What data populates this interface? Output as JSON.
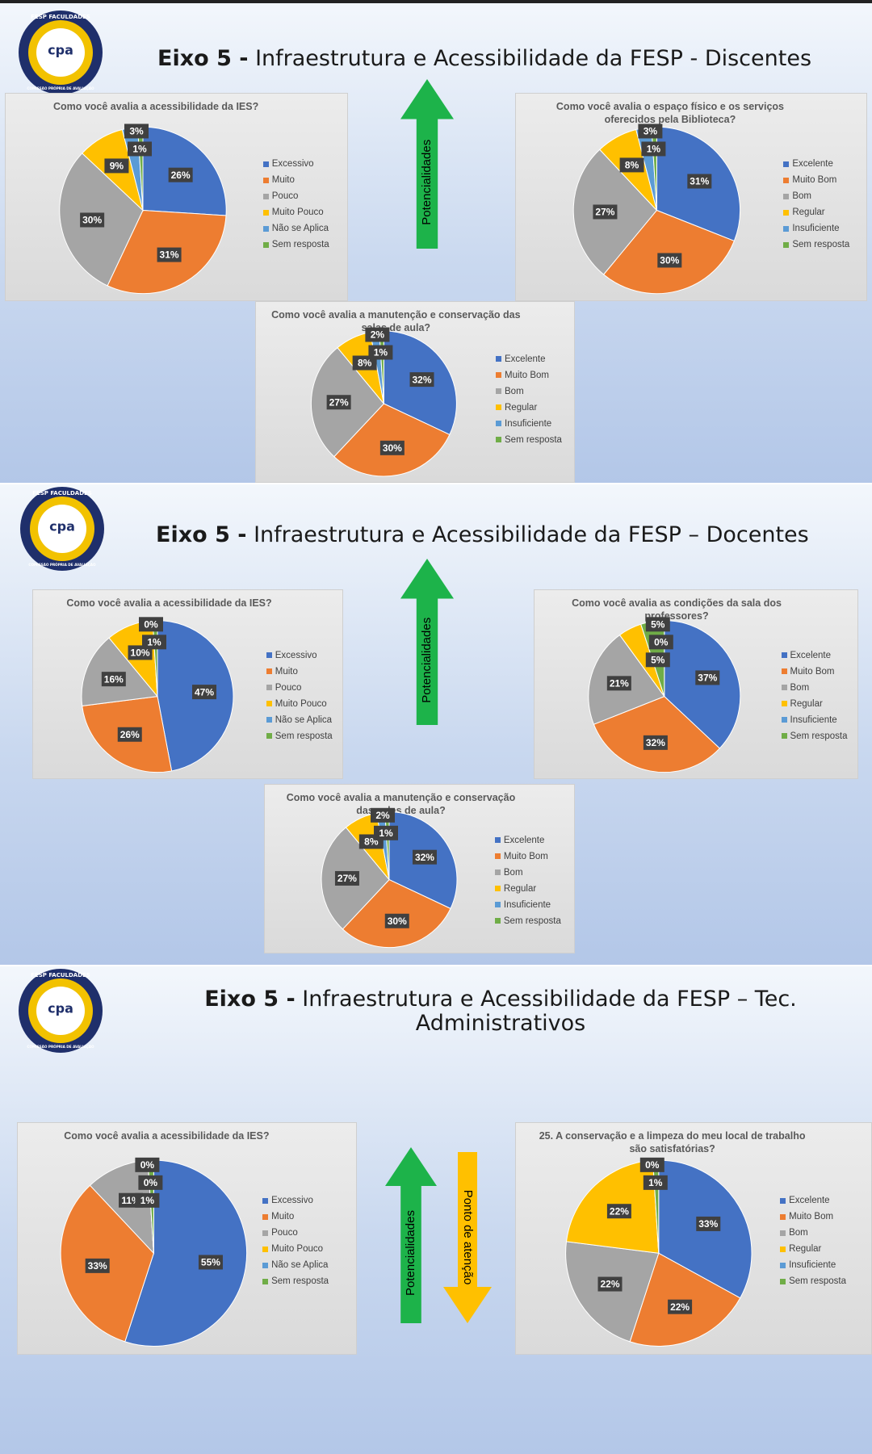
{
  "logo": {
    "name": "FESP FACULDADES",
    "acronym": "cpa",
    "subtitle": "COMISSÃO PRÓPRIA DE AVALIAÇÃO"
  },
  "slides": [
    {
      "title_bold": "Eixo 5 -",
      "title": "Infraestrutura e Acessibilidade da FESP - Discentes",
      "arrows": [
        "Potencialidades"
      ]
    },
    {
      "title_bold": "Eixo 5 -",
      "title": "Infraestrutura e Acessibilidade da FESP – Docentes",
      "arrows": [
        "Potencialidades"
      ]
    },
    {
      "title_bold": "Eixo 5 -",
      "title": "Infraestrutura e Acessibilidade da FESP – Tec. Administrativos",
      "arrows": [
        "Potencialidades",
        "Ponto de atenção"
      ]
    }
  ],
  "chart_data": [
    {
      "type": "pie",
      "title": "Como você avalia a acessibilidade da IES?",
      "categories": [
        "Excessivo",
        "Muito",
        "Pouco",
        "Muito Pouco",
        "Não se Aplica",
        "Sem resposta"
      ],
      "values": [
        26,
        31,
        30,
        9,
        3,
        1
      ],
      "value_labels": [
        "26%",
        "31%",
        "30%",
        "9%",
        "3%",
        "1%"
      ],
      "colors": [
        "#4472c4",
        "#ed7d31",
        "#a5a5a5",
        "#ffc000",
        "#5b9bd5",
        "#70ad47"
      ],
      "legend": "right"
    },
    {
      "type": "pie",
      "title": "Como você avalia o espaço físico e os serviços oferecidos pela Biblioteca?",
      "categories": [
        "Excelente",
        "Muito Bom",
        "Bom",
        "Regular",
        "Insuficiente",
        "Sem resposta"
      ],
      "values": [
        31,
        30,
        27,
        8,
        3,
        1
      ],
      "value_labels": [
        "31%",
        "30%",
        "27%",
        "8%",
        "3%",
        "1%"
      ],
      "colors": [
        "#4472c4",
        "#ed7d31",
        "#a5a5a5",
        "#ffc000",
        "#5b9bd5",
        "#70ad47"
      ],
      "legend": "right"
    },
    {
      "type": "pie",
      "title": "Como você avalia a manutenção e conservação das salas de aula?",
      "categories": [
        "Excelente",
        "Muito Bom",
        "Bom",
        "Regular",
        "Insuficiente",
        "Sem resposta"
      ],
      "values": [
        32,
        30,
        27,
        8,
        2,
        1
      ],
      "value_labels": [
        "32%",
        "30%",
        "27%",
        "8%",
        "2%",
        "1%"
      ],
      "colors": [
        "#4472c4",
        "#ed7d31",
        "#a5a5a5",
        "#ffc000",
        "#5b9bd5",
        "#70ad47"
      ],
      "legend": "right"
    },
    {
      "type": "pie",
      "title": "Como você avalia a acessibilidade da IES?",
      "categories": [
        "Excessivo",
        "Muito",
        "Pouco",
        "Muito Pouco",
        "Não se Aplica",
        "Sem resposta"
      ],
      "values": [
        47,
        26,
        16,
        10,
        0,
        1
      ],
      "value_labels": [
        "47%",
        "26%",
        "16%",
        "10%",
        "0%",
        "1%"
      ],
      "colors": [
        "#4472c4",
        "#ed7d31",
        "#a5a5a5",
        "#ffc000",
        "#5b9bd5",
        "#70ad47"
      ],
      "legend": "right"
    },
    {
      "type": "pie",
      "title": "Como você avalia as condições da sala dos professores?",
      "categories": [
        "Excelente",
        "Muito Bom",
        "Bom",
        "Regular",
        "Insuficiente",
        "Sem resposta"
      ],
      "values": [
        37,
        32,
        21,
        5,
        0,
        5
      ],
      "value_labels": [
        "37%",
        "32%",
        "21%",
        "5%",
        "0%",
        "5%"
      ],
      "colors": [
        "#4472c4",
        "#ed7d31",
        "#a5a5a5",
        "#ffc000",
        "#5b9bd5",
        "#70ad47"
      ],
      "legend": "right"
    },
    {
      "type": "pie",
      "title": "Como você avalia a manutenção e conservação das salas de aula?",
      "categories": [
        "Excelente",
        "Muito Bom",
        "Bom",
        "Regular",
        "Insuficiente",
        "Sem resposta"
      ],
      "values": [
        32,
        30,
        27,
        8,
        2,
        1
      ],
      "value_labels": [
        "32%",
        "30%",
        "27%",
        "8%",
        "2%",
        "1%"
      ],
      "colors": [
        "#4472c4",
        "#ed7d31",
        "#a5a5a5",
        "#ffc000",
        "#5b9bd5",
        "#70ad47"
      ],
      "legend": "right"
    },
    {
      "type": "pie",
      "title": "Como você avalia a acessibilidade da IES?",
      "categories": [
        "Excessivo",
        "Muito",
        "Pouco",
        "Muito Pouco",
        "Não se Aplica",
        "Sem resposta"
      ],
      "values": [
        55,
        33,
        11,
        0,
        0,
        1
      ],
      "value_labels": [
        "55%",
        "33%",
        "11%",
        "0%",
        "0%",
        "1%"
      ],
      "colors": [
        "#4472c4",
        "#ed7d31",
        "#a5a5a5",
        "#ffc000",
        "#5b9bd5",
        "#70ad47"
      ],
      "legend": "right"
    },
    {
      "type": "pie",
      "title": "25. A conservação e a limpeza do meu local de trabalho são satisfatórias?",
      "categories": [
        "Excelente",
        "Muito Bom",
        "Bom",
        "Regular",
        "Insuficiente",
        "Sem resposta"
      ],
      "values": [
        33,
        22,
        22,
        22,
        0,
        1
      ],
      "value_labels": [
        "33%",
        "22%",
        "22%",
        "22%",
        "0%",
        "1%"
      ],
      "colors": [
        "#4472c4",
        "#ed7d31",
        "#a5a5a5",
        "#ffc000",
        "#5b9bd5",
        "#70ad47"
      ],
      "legend": "right"
    }
  ]
}
